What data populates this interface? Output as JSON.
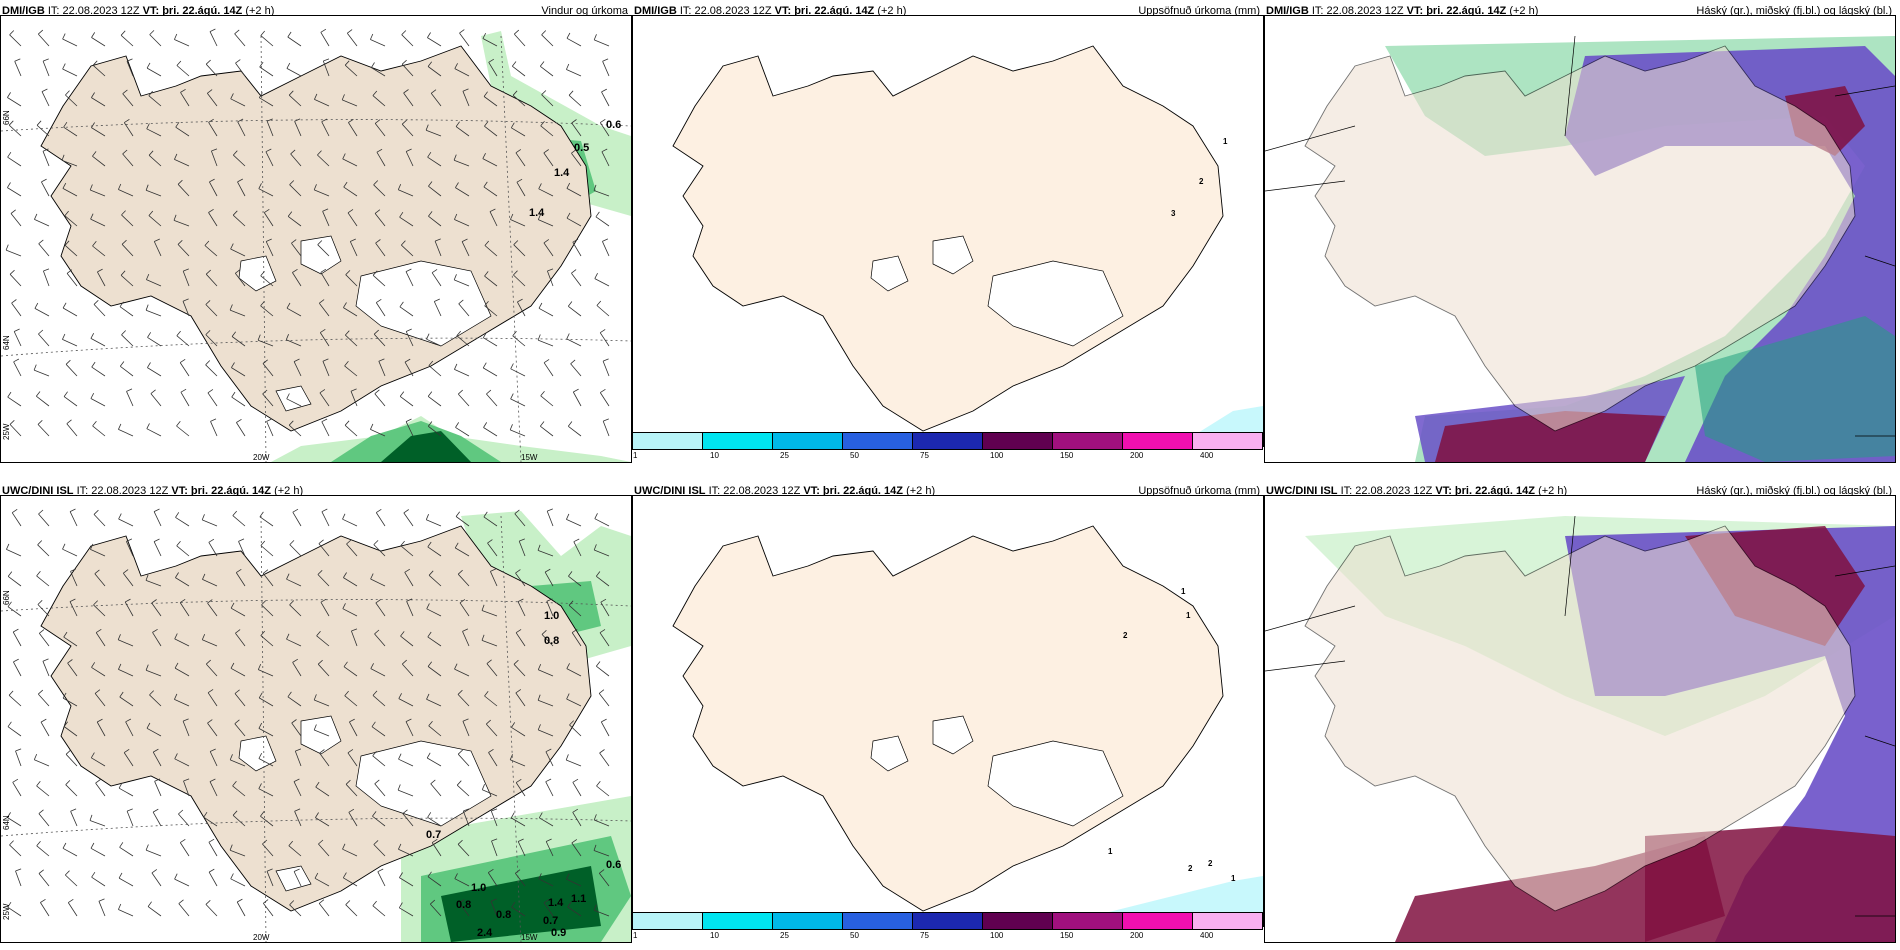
{
  "panels": [
    {
      "id": "p1",
      "model": "DMI/IGB",
      "it": "IT: 22.08.2023 12Z",
      "vt": "VT: þri. 22.ágú. 14Z",
      "lead": "(+2 h)",
      "title": "Vindur og úrkoma"
    },
    {
      "id": "p2",
      "model": "DMI/IGB",
      "it": "IT: 22.08.2023 12Z",
      "vt": "VT: þri. 22.ágú. 14Z",
      "lead": "(+2 h)",
      "title": "Uppsöfnuð úrkoma (mm)"
    },
    {
      "id": "p3",
      "model": "DMI/IGB",
      "it": "IT: 22.08.2023 12Z",
      "vt": "VT: þri. 22.ágú. 14Z",
      "lead": "(+2 h)",
      "title": "Háský (gr.), miðský (fj.bl.) og lágský (bl.)"
    },
    {
      "id": "p4",
      "model": "UWC/DINI ISL",
      "it": "IT: 22.08.2023 12Z",
      "vt": "VT: þri. 22.ágú. 14Z",
      "lead": "(+2 h)",
      "title": ""
    },
    {
      "id": "p5",
      "model": "UWC/DINI ISL",
      "it": "IT: 22.08.2023 12Z",
      "vt": "VT: þri. 22.ágú. 14Z",
      "lead": "(+2 h)",
      "title": "Uppsöfnuð úrkoma (mm)"
    },
    {
      "id": "p6",
      "model": "UWC/DINI ISL",
      "it": "IT: 22.08.2023 12Z",
      "vt": "VT: þri. 22.ágú. 14Z",
      "lead": "(+2 h)",
      "title": "Háský (gr.), miðský (fj.bl.) og lágský (bl.)"
    }
  ],
  "grid_labels": {
    "lat66": "66N",
    "lat64": "64N",
    "lon20": "20W",
    "lon15": "15W",
    "lon25": "25W"
  },
  "precip_labels_p1": [
    "0.6",
    "0.5",
    "1.4",
    "1.4"
  ],
  "precip_labels_p4": [
    "1.0",
    "0.8",
    "0.7",
    "0.6",
    "1.0",
    "0.8",
    "0.8",
    "0.7",
    "1.4",
    "1.1",
    "2.4",
    "0.9"
  ],
  "accum_labels_p2": [
    "1",
    "2",
    "3"
  ],
  "accum_labels_p5": [
    "1",
    "1",
    "2",
    "1",
    "2",
    "2",
    "1"
  ],
  "colorbar": {
    "ticks": [
      "1",
      "10",
      "25",
      "50",
      "75",
      "100",
      "150",
      "200",
      "400"
    ],
    "colors": [
      "#b8f4f8",
      "#00e4f0",
      "#00b8e8",
      "#2860e0",
      "#1c28b0",
      "#600050",
      "#a0107e",
      "#f010b0",
      "#f8b0f0"
    ]
  },
  "colors": {
    "land": "#ede0d0",
    "land_p2": "#fdf0e2",
    "ice": "#ffffff",
    "precip_light": "#c8f0c8",
    "precip_mid": "#60c880",
    "precip_dark": "#006028",
    "cloud_high": "#20a080",
    "cloud_mid": "#6a50c8",
    "cloud_low": "#801040"
  }
}
